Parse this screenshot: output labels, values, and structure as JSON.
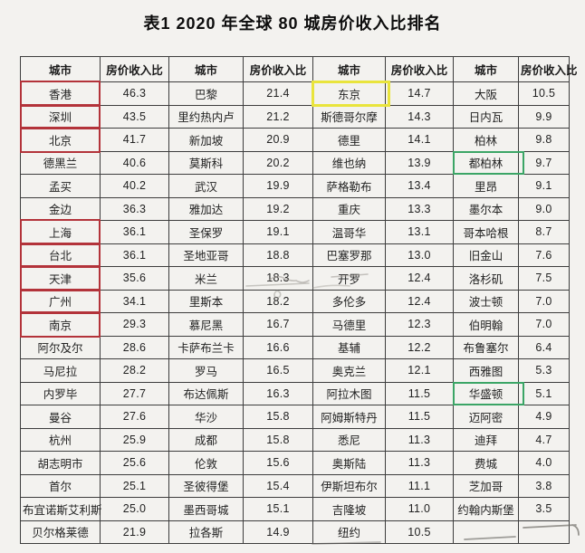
{
  "title": "表1  2020 年全球 80 城房价收入比排名",
  "highlight_colors": {
    "red": "#b3333a",
    "yellow": "#e9e43c",
    "green": "#3ba566"
  },
  "table": {
    "columns": [
      "城市",
      "房价收入比",
      "城市",
      "房价收入比",
      "城市",
      "房价收入比",
      "城市",
      "房价收入比"
    ],
    "rows": [
      {
        "cells": [
          {
            "city": "香港",
            "ratio": "46.3",
            "hl": "red"
          },
          {
            "city": "巴黎",
            "ratio": "21.4"
          },
          {
            "city": "东京",
            "ratio": "14.7",
            "hl": "yellow"
          },
          {
            "city": "大阪",
            "ratio": "10.5"
          }
        ]
      },
      {
        "cells": [
          {
            "city": "深圳",
            "ratio": "43.5",
            "hl": "red"
          },
          {
            "city": "里约热内卢",
            "ratio": "21.2"
          },
          {
            "city": "斯德哥尔摩",
            "ratio": "14.3"
          },
          {
            "city": "日内瓦",
            "ratio": "9.9"
          }
        ]
      },
      {
        "cells": [
          {
            "city": "北京",
            "ratio": "41.7",
            "hl": "red"
          },
          {
            "city": "新加坡",
            "ratio": "20.9"
          },
          {
            "city": "德里",
            "ratio": "14.1"
          },
          {
            "city": "柏林",
            "ratio": "9.8"
          }
        ]
      },
      {
        "cells": [
          {
            "city": "德黑兰",
            "ratio": "40.6"
          },
          {
            "city": "莫斯科",
            "ratio": "20.2"
          },
          {
            "city": "维也纳",
            "ratio": "13.9"
          },
          {
            "city": "都柏林",
            "ratio": "9.7",
            "hl": "green"
          }
        ]
      },
      {
        "cells": [
          {
            "city": "孟买",
            "ratio": "40.2"
          },
          {
            "city": "武汉",
            "ratio": "19.9"
          },
          {
            "city": "萨格勒布",
            "ratio": "13.4"
          },
          {
            "city": "里昂",
            "ratio": "9.1"
          }
        ]
      },
      {
        "cells": [
          {
            "city": "金边",
            "ratio": "36.3"
          },
          {
            "city": "雅加达",
            "ratio": "19.2"
          },
          {
            "city": "重庆",
            "ratio": "13.3"
          },
          {
            "city": "墨尔本",
            "ratio": "9.0"
          }
        ]
      },
      {
        "cells": [
          {
            "city": "上海",
            "ratio": "36.1",
            "hl": "red"
          },
          {
            "city": "圣保罗",
            "ratio": "19.1"
          },
          {
            "city": "温哥华",
            "ratio": "13.1"
          },
          {
            "city": "哥本哈根",
            "ratio": "8.7"
          }
        ]
      },
      {
        "cells": [
          {
            "city": "台北",
            "ratio": "36.1",
            "hl": "red"
          },
          {
            "city": "圣地亚哥",
            "ratio": "18.8"
          },
          {
            "city": "巴塞罗那",
            "ratio": "13.0"
          },
          {
            "city": "旧金山",
            "ratio": "7.6"
          }
        ]
      },
      {
        "cells": [
          {
            "city": "天津",
            "ratio": "35.6",
            "hl": "red"
          },
          {
            "city": "米兰",
            "ratio": "18.3"
          },
          {
            "city": "开罗",
            "ratio": "12.4"
          },
          {
            "city": "洛杉矶",
            "ratio": "7.5"
          }
        ]
      },
      {
        "cells": [
          {
            "city": "广州",
            "ratio": "34.1",
            "hl": "red"
          },
          {
            "city": "里斯本",
            "ratio": "18.2"
          },
          {
            "city": "多伦多",
            "ratio": "12.4"
          },
          {
            "city": "波士顿",
            "ratio": "7.0"
          }
        ]
      },
      {
        "cells": [
          {
            "city": "南京",
            "ratio": "29.3",
            "hl": "red"
          },
          {
            "city": "慕尼黑",
            "ratio": "16.7"
          },
          {
            "city": "马德里",
            "ratio": "12.3"
          },
          {
            "city": "伯明翰",
            "ratio": "7.0"
          }
        ]
      },
      {
        "cells": [
          {
            "city": "阿尔及尔",
            "ratio": "28.6"
          },
          {
            "city": "卡萨布兰卡",
            "ratio": "16.6"
          },
          {
            "city": "基辅",
            "ratio": "12.2"
          },
          {
            "city": "布鲁塞尔",
            "ratio": "6.4"
          }
        ]
      },
      {
        "cells": [
          {
            "city": "马尼拉",
            "ratio": "28.2"
          },
          {
            "city": "罗马",
            "ratio": "16.5"
          },
          {
            "city": "奥克兰",
            "ratio": "12.1"
          },
          {
            "city": "西雅图",
            "ratio": "5.3"
          }
        ]
      },
      {
        "cells": [
          {
            "city": "内罗毕",
            "ratio": "27.7"
          },
          {
            "city": "布达佩斯",
            "ratio": "16.3"
          },
          {
            "city": "阿拉木图",
            "ratio": "11.5"
          },
          {
            "city": "华盛顿",
            "ratio": "5.1",
            "hl": "green"
          }
        ]
      },
      {
        "cells": [
          {
            "city": "曼谷",
            "ratio": "27.6"
          },
          {
            "city": "华沙",
            "ratio": "15.8"
          },
          {
            "city": "阿姆斯特丹",
            "ratio": "11.5"
          },
          {
            "city": "迈阿密",
            "ratio": "4.9"
          }
        ]
      },
      {
        "cells": [
          {
            "city": "杭州",
            "ratio": "25.9"
          },
          {
            "city": "成都",
            "ratio": "15.8"
          },
          {
            "city": "悉尼",
            "ratio": "11.3"
          },
          {
            "city": "迪拜",
            "ratio": "4.7"
          }
        ]
      },
      {
        "cells": [
          {
            "city": "胡志明市",
            "ratio": "25.6"
          },
          {
            "city": "伦敦",
            "ratio": "15.6"
          },
          {
            "city": "奥斯陆",
            "ratio": "11.3"
          },
          {
            "city": "费城",
            "ratio": "4.0"
          }
        ]
      },
      {
        "cells": [
          {
            "city": "首尔",
            "ratio": "25.1"
          },
          {
            "city": "圣彼得堡",
            "ratio": "15.4"
          },
          {
            "city": "伊斯坦布尔",
            "ratio": "11.1"
          },
          {
            "city": "芝加哥",
            "ratio": "3.8"
          }
        ]
      },
      {
        "cells": [
          {
            "city": "布宜诺斯艾利斯",
            "ratio": "25.0"
          },
          {
            "city": "墨西哥城",
            "ratio": "15.1"
          },
          {
            "city": "吉隆坡",
            "ratio": "11.0"
          },
          {
            "city": "约翰内斯堡",
            "ratio": "3.5"
          }
        ]
      },
      {
        "cells": [
          {
            "city": "贝尔格莱德",
            "ratio": "21.9"
          },
          {
            "city": "拉各斯",
            "ratio": "14.9"
          },
          {
            "city": "纽约",
            "ratio": "10.5"
          },
          {
            "city": "",
            "ratio": ""
          }
        ]
      }
    ]
  }
}
